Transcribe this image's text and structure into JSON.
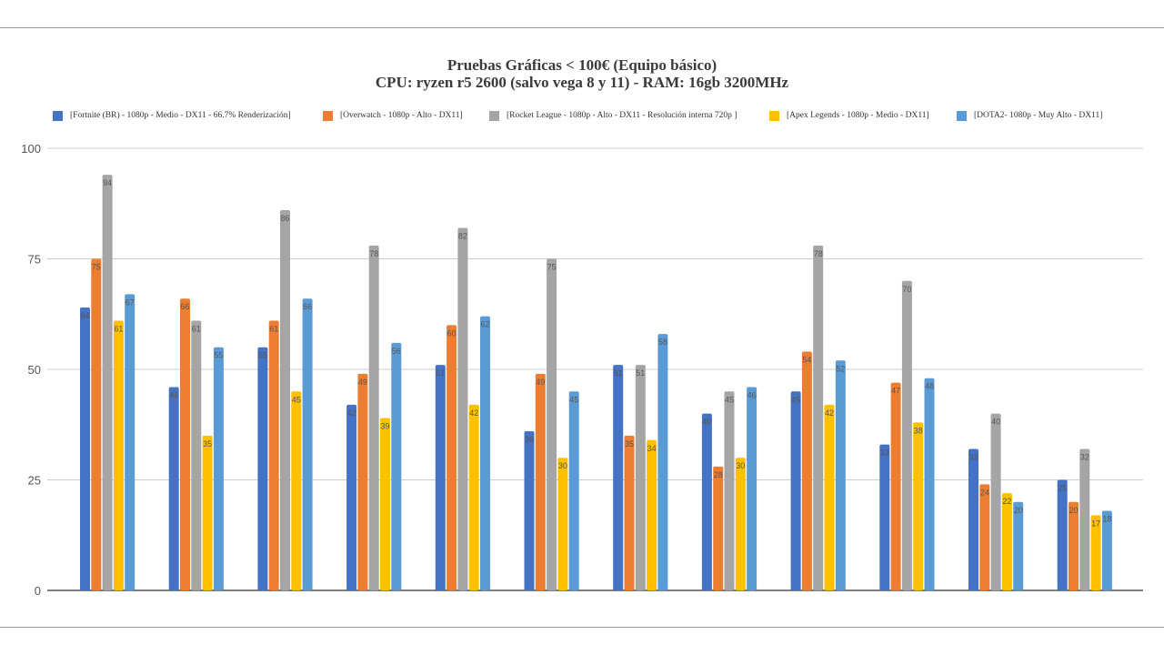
{
  "chart_data": {
    "type": "bar",
    "title": "Pruebas Gráficas < 100€ (Equipo básico)",
    "subtitle": "CPU: ryzen r5 2600 (salvo vega 8 y 11) - RAM: 16gb 3200MHz",
    "xlabel": "",
    "ylabel": "",
    "ylim": [
      0,
      100
    ],
    "yticks": [
      0,
      25,
      50,
      75,
      100
    ],
    "grid": true,
    "legend_position": "top",
    "categories": [
      "",
      "",
      "",
      "",
      "",
      "",
      "",
      "",
      "",
      "",
      "",
      ""
    ],
    "series": [
      {
        "name": "[Fortnite (BR) - 1080p - Medio - DX11 - 66.7% Renderización]",
        "color": "#4472c4",
        "values": [
          64,
          46,
          55,
          42,
          51,
          36,
          51,
          40,
          45,
          33,
          32,
          25
        ]
      },
      {
        "name": "[Overwatch - 1080p - Alto - DX11]",
        "color": "#ed7d31",
        "values": [
          75,
          66,
          61,
          49,
          60,
          49,
          35,
          28,
          54,
          47,
          24,
          20
        ]
      },
      {
        "name": "[Rocket League - 1080p - Alto - DX11 - Resolución interna 720p ]",
        "color": "#a5a5a5",
        "values": [
          94,
          61,
          86,
          78,
          82,
          75,
          51,
          45,
          78,
          70,
          40,
          32
        ]
      },
      {
        "name": "[Apex Legends - 1080p - Medio - DX11]",
        "color": "#ffc000",
        "values": [
          61,
          35,
          45,
          39,
          42,
          30,
          34,
          30,
          42,
          38,
          22,
          17
        ]
      },
      {
        "name": "[DOTA2- 1080p - Muy Alto - DX11]",
        "color": "#5b9bd5",
        "values": [
          67,
          55,
          66,
          56,
          62,
          45,
          58,
          46,
          52,
          48,
          20,
          18
        ]
      }
    ]
  }
}
